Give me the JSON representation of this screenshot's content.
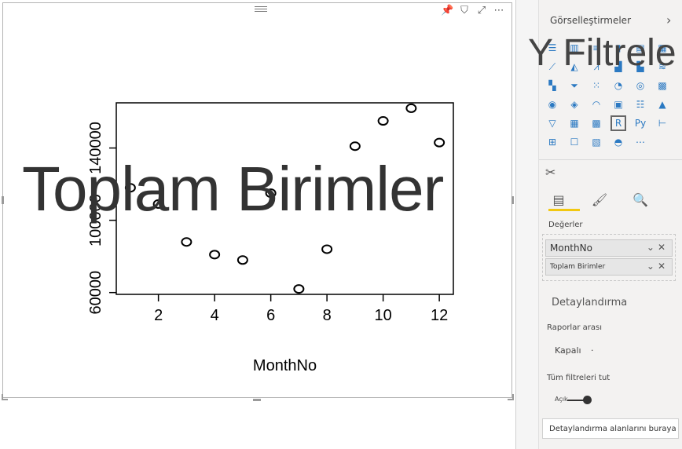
{
  "visual": {
    "header_icons": [
      {
        "icon": "pin-icon",
        "glyph": "📌"
      },
      {
        "icon": "filter-icon",
        "glyph": "⛉"
      },
      {
        "icon": "focus-mode-icon",
        "glyph": "⤢"
      },
      {
        "icon": "more-options-icon",
        "glyph": "⋯"
      }
    ],
    "overlay_title": "Toplam Birimler"
  },
  "chart_data": {
    "type": "scatter",
    "xlabel": "MonthNo",
    "ylabel": "",
    "x": [
      1,
      2,
      3,
      4,
      5,
      6,
      7,
      8,
      9,
      10,
      11,
      12
    ],
    "y": [
      118000,
      109000,
      88000,
      81000,
      78000,
      115000,
      62000,
      84000,
      141000,
      155000,
      162000,
      143000
    ],
    "xlim": [
      0.5,
      12.5
    ],
    "ylim": [
      59000,
      165000
    ],
    "x_ticks": [
      "2",
      "4",
      "6",
      "8",
      "10",
      "12"
    ],
    "x_tick_values": [
      2,
      4,
      6,
      8,
      10,
      12
    ],
    "y_ticks": [
      "60000",
      "100000",
      "140000"
    ],
    "y_tick_values": [
      60000,
      100000,
      140000
    ],
    "grid": false,
    "colors": {
      "marker": "#000000"
    }
  },
  "pane": {
    "title": "Görselleştirmeler",
    "filters_overlay": "Y Filtrele",
    "visual_icons": [
      "stacked-bar-icon",
      "stacked-column-icon",
      "clustered-bar-icon",
      "clustered-column-icon",
      "100-bar-icon",
      "100-column-icon",
      "line-chart-icon",
      "area-chart-icon",
      "stacked-area-icon",
      "line-column-icon",
      "line-clustered-icon",
      "ribbon-chart-icon",
      "waterfall-icon",
      "funnel-icon",
      "scatter-icon",
      "pie-chart-icon",
      "donut-chart-icon",
      "treemap-icon",
      "map-icon",
      "filled-map-icon",
      "gauge-icon",
      "card-icon",
      "multi-row-card-icon",
      "kpi-icon",
      "slicer-icon",
      "table-icon",
      "matrix-icon",
      "r-visual-icon",
      "python-visual-icon",
      "key-influencers-icon",
      "decomposition-tree-icon",
      "qa-icon",
      "smart-narrative-icon",
      "paginated-report-icon",
      "more-visuals-icon"
    ],
    "visual_glyphs": [
      "☰",
      "▥",
      "≡",
      "▮",
      "▤",
      "▦",
      "⟋",
      "◭",
      "⩘",
      "▟",
      "▙",
      "≋",
      "▚",
      "⏷",
      "⁙",
      "◔",
      "◎",
      "▩",
      "◉",
      "◈",
      "◠",
      "▣",
      "☷",
      "▲",
      "▽",
      "▦",
      "▩",
      "R",
      "Py",
      "⊢",
      "⊞",
      "☐",
      "▧",
      "◓",
      "⋯"
    ],
    "values_label": "Değerler",
    "fields": [
      {
        "name": "MonthNo"
      },
      {
        "name": "Toplam Birimler"
      }
    ],
    "drillthrough": {
      "title": "Detaylandırma",
      "cross_report_label": "Raporlar arası",
      "cross_report_value": "Kapalı",
      "keep_filters_label": "Tüm filtreleri tut",
      "keep_filters_value": "Açık",
      "drop_placeholder": "Detaylandırma alanlarını buraya ekle"
    }
  }
}
